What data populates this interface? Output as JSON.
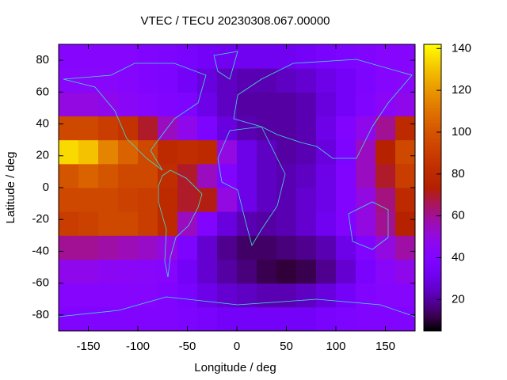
{
  "chart_data": {
    "type": "heatmap",
    "title": "VTEC / TECU 20230308.067.00000",
    "xlabel": "Longitude / deg",
    "ylabel": "Latitude / deg",
    "xlim": [
      -180,
      180
    ],
    "ylim": [
      -90,
      90
    ],
    "xticks": [
      -150,
      -100,
      -50,
      0,
      50,
      100,
      150
    ],
    "yticks": [
      -80,
      -60,
      -40,
      -20,
      0,
      20,
      40,
      60,
      80
    ],
    "x": [
      -170,
      -150,
      -130,
      -110,
      -90,
      -70,
      -50,
      -30,
      -10,
      10,
      30,
      50,
      70,
      90,
      110,
      130,
      150,
      170
    ],
    "y": [
      -82.5,
      -67.5,
      -52.5,
      -37.5,
      -22.5,
      -7.5,
      7.5,
      22.5,
      37.5,
      52.5,
      67.5,
      82.5
    ],
    "z": [
      [
        40,
        40,
        40,
        40,
        40,
        40,
        38,
        36,
        34,
        34,
        34,
        34,
        34,
        36,
        38,
        40,
        40,
        40
      ],
      [
        42,
        42,
        42,
        42,
        42,
        40,
        36,
        30,
        26,
        24,
        22,
        22,
        24,
        28,
        34,
        40,
        42,
        42
      ],
      [
        48,
        48,
        46,
        45,
        44,
        42,
        34,
        26,
        20,
        16,
        12,
        10,
        12,
        18,
        26,
        36,
        44,
        48
      ],
      [
        60,
        60,
        58,
        56,
        54,
        50,
        38,
        26,
        18,
        14,
        14,
        16,
        18,
        22,
        30,
        40,
        50,
        58
      ],
      [
        90,
        92,
        95,
        95,
        90,
        80,
        55,
        40,
        28,
        22,
        20,
        22,
        26,
        32,
        40,
        50,
        60,
        75
      ],
      [
        95,
        95,
        95,
        92,
        90,
        80,
        70,
        72,
        50,
        30,
        24,
        22,
        26,
        30,
        40,
        50,
        62,
        80
      ],
      [
        100,
        105,
        100,
        95,
        95,
        82,
        70,
        55,
        40,
        30,
        24,
        22,
        24,
        30,
        40,
        55,
        70,
        90
      ],
      [
        135,
        130,
        115,
        105,
        95,
        80,
        82,
        80,
        50,
        30,
        24,
        20,
        22,
        28,
        38,
        55,
        75,
        95
      ],
      [
        95,
        95,
        90,
        85,
        70,
        55,
        48,
        38,
        28,
        22,
        20,
        20,
        22,
        30,
        40,
        48,
        60,
        80
      ],
      [
        50,
        50,
        48,
        45,
        42,
        40,
        38,
        30,
        24,
        20,
        20,
        20,
        22,
        28,
        34,
        40,
        45,
        48
      ],
      [
        44,
        44,
        44,
        42,
        40,
        38,
        34,
        28,
        24,
        22,
        22,
        24,
        26,
        30,
        34,
        38,
        42,
        44
      ],
      [
        42,
        42,
        42,
        42,
        40,
        38,
        36,
        34,
        32,
        32,
        32,
        32,
        34,
        36,
        38,
        40,
        42,
        42
      ]
    ],
    "zlim": [
      5,
      142
    ],
    "cbticks": [
      20,
      40,
      60,
      80,
      100,
      120,
      140
    ],
    "colormap": "gnuplot",
    "coastline_color": "#40e0d0"
  }
}
